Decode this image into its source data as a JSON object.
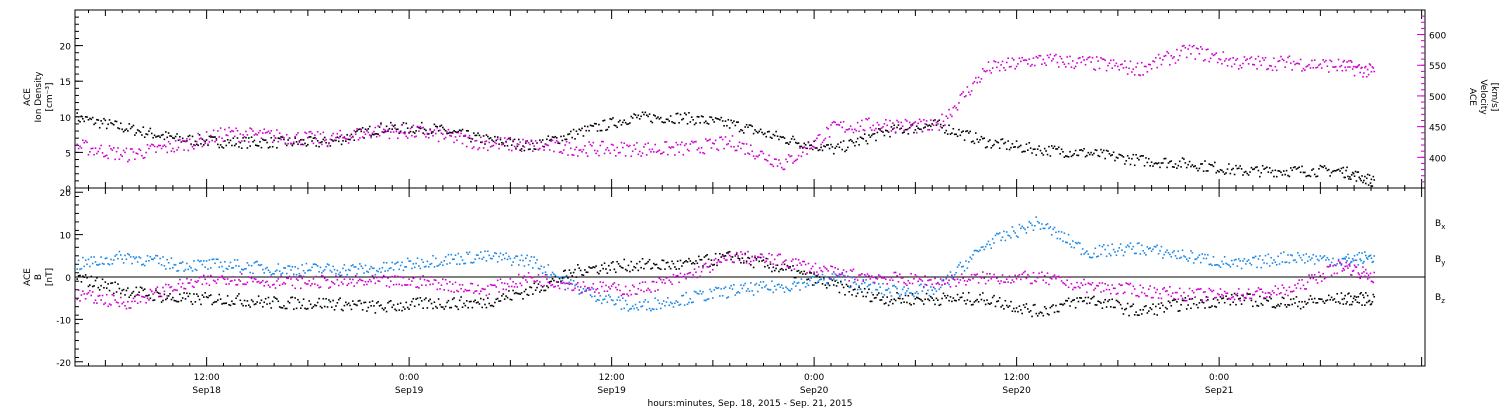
{
  "chart_data": [
    {
      "type": "scatter",
      "panel": "top",
      "left_axis": {
        "label_lines": [
          "ACE",
          "Ion Density",
          "[cm⁻³]"
        ],
        "ylim": [
          0,
          25
        ],
        "ticks": [
          "0",
          "5",
          "10",
          "15",
          "20"
        ],
        "tick_values": [
          0,
          5,
          10,
          15,
          20
        ]
      },
      "right_axis": {
        "label_lines": [
          "ACE",
          "Velocity",
          "[km/s]"
        ],
        "ylim": [
          350,
          640
        ],
        "ticks": [
          "400",
          "450",
          "500",
          "550",
          "600"
        ],
        "tick_values": [
          400,
          450,
          500,
          550,
          600
        ],
        "color": "#d000d0"
      },
      "series": [
        {
          "name": "Ion Density",
          "axis": "left",
          "color": "#000000",
          "x": [
            0,
            3,
            6,
            9,
            12,
            15,
            18,
            21,
            24,
            27,
            30,
            33,
            36,
            39,
            42,
            45,
            48,
            51,
            54,
            57,
            60,
            63,
            66,
            69,
            72,
            75,
            77
          ],
          "y": [
            10,
            8.5,
            7,
            6.5,
            6.5,
            6.5,
            8.5,
            8.5,
            7,
            6,
            8,
            10,
            10,
            9,
            7,
            5.5,
            8,
            9,
            6.5,
            5.5,
            5,
            4,
            3.5,
            2.5,
            2.5,
            2.5,
            1
          ]
        },
        {
          "name": "Velocity",
          "axis": "right",
          "color": "#d000d0",
          "x": [
            0,
            3,
            6,
            9,
            12,
            15,
            18,
            21,
            24,
            27,
            30,
            33,
            36,
            39,
            42,
            45,
            48,
            51,
            54,
            57,
            60,
            63,
            66,
            69,
            72,
            75,
            77
          ],
          "y": [
            420,
            405,
            420,
            440,
            435,
            430,
            445,
            440,
            425,
            420,
            415,
            415,
            415,
            425,
            390,
            450,
            455,
            450,
            545,
            560,
            555,
            545,
            575,
            555,
            555,
            550,
            540
          ]
        }
      ]
    },
    {
      "type": "scatter",
      "panel": "bottom",
      "left_axis": {
        "label_lines": [
          "ACE",
          "B",
          "[nT]"
        ],
        "ylim": [
          -21,
          21
        ],
        "ticks": [
          "-20",
          "-10",
          "0",
          "10",
          "20"
        ],
        "tick_values": [
          -20,
          -10,
          0,
          10,
          20
        ]
      },
      "zero_line": true,
      "series": [
        {
          "name": "Bₓ",
          "color": "#000000",
          "x": [
            0,
            3,
            6,
            9,
            12,
            15,
            18,
            21,
            24,
            27,
            30,
            33,
            36,
            39,
            42,
            45,
            48,
            51,
            54,
            57,
            60,
            63,
            66,
            69,
            72,
            75,
            77
          ],
          "y": [
            0,
            -3,
            -5,
            -5,
            -6,
            -6,
            -7,
            -6,
            -6,
            -3,
            2,
            3,
            3,
            5,
            2,
            -2,
            -5,
            -5,
            -5,
            -8,
            -5,
            -8,
            -6,
            -5,
            -6,
            -5,
            -5
          ]
        },
        {
          "name": "Bᵧ",
          "color": "#1e88e5",
          "x": [
            0,
            3,
            6,
            9,
            12,
            15,
            18,
            21,
            24,
            27,
            30,
            33,
            36,
            39,
            42,
            45,
            48,
            51,
            54,
            57,
            60,
            63,
            66,
            69,
            72,
            75,
            77
          ],
          "y": [
            3,
            5,
            3,
            3,
            2,
            2,
            2,
            4,
            5,
            4,
            -3,
            -7,
            -5,
            -3,
            -2,
            0,
            -3,
            -3,
            8,
            13,
            6,
            7,
            5,
            3,
            5,
            4,
            5
          ],
          "label_color": "#1e88e5"
        },
        {
          "name": "B_z",
          "color": "#d000d0",
          "x": [
            0,
            3,
            6,
            9,
            12,
            15,
            18,
            21,
            24,
            27,
            30,
            33,
            36,
            39,
            42,
            45,
            48,
            51,
            54,
            57,
            60,
            63,
            66,
            69,
            72,
            75,
            77
          ],
          "y": [
            -4,
            -6,
            -2,
            0,
            -1,
            -1,
            -1,
            -1,
            -3,
            0,
            -2,
            -3,
            0,
            5,
            4,
            1,
            0,
            -1,
            0,
            0,
            -2,
            -3,
            -4,
            -4,
            -3,
            3,
            0
          ]
        }
      ],
      "legend_labels": [
        "B",
        "B",
        "B"
      ],
      "legend_subscripts": [
        "x",
        "y",
        "z"
      ]
    }
  ],
  "x_axis": {
    "major_tick_labels": [
      {
        "hours": 12,
        "top": "12:00",
        "bottom": "Sep18"
      },
      {
        "hours": 24,
        "top": "0:00",
        "bottom": "Sep19"
      },
      {
        "hours": 36,
        "top": "12:00",
        "bottom": "Sep19"
      },
      {
        "hours": 48,
        "top": "0:00",
        "bottom": "Sep20"
      },
      {
        "hours": 60,
        "top": "12:00",
        "bottom": "Sep20"
      },
      {
        "hours": 72,
        "top": "0:00",
        "bottom": "Sep21"
      }
    ],
    "range_hours": [
      4.2,
      84.2
    ],
    "title": "hours:minutes, Sep. 18, 2015 - Sep. 21, 2015"
  }
}
